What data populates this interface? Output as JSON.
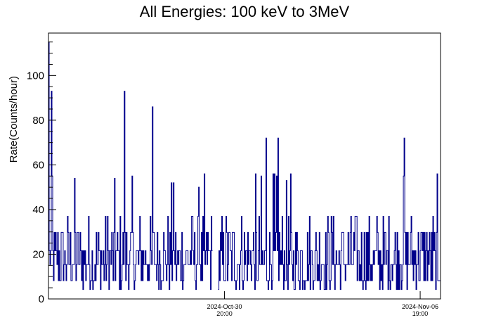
{
  "chart_data": {
    "type": "line",
    "title": "All Energies:  100 keV to 3MeV",
    "xlabel": "",
    "ylabel": "Rate(Counts/hour)",
    "ylim": [
      0,
      119
    ],
    "yticks": [
      0,
      20,
      40,
      60,
      80,
      100
    ],
    "xticks": [
      {
        "line1": "2024-Oct-30",
        "line2": "20:00",
        "hour": 251
      },
      {
        "line1": "2024-Nov-06",
        "line2": "19:00",
        "hour": 530
      }
    ],
    "x_range_hours": [
      0,
      559
    ],
    "series_color": "#00008b",
    "binning": "hourly",
    "value_quantum": 7.2,
    "typical_range": [
      7,
      36
    ],
    "baseline_median": 18,
    "gaps_hours": [
      [
        234,
        242
      ]
    ],
    "notable_peaks": [
      {
        "hour": 0,
        "value": 115
      },
      {
        "hour": 4,
        "value": 93
      },
      {
        "hour": 108,
        "value": 93
      },
      {
        "hour": 148,
        "value": 86
      },
      {
        "hour": 310,
        "value": 72
      },
      {
        "hour": 327,
        "value": 72
      },
      {
        "hour": 507,
        "value": 72
      }
    ],
    "grid": false,
    "legend": "none"
  }
}
